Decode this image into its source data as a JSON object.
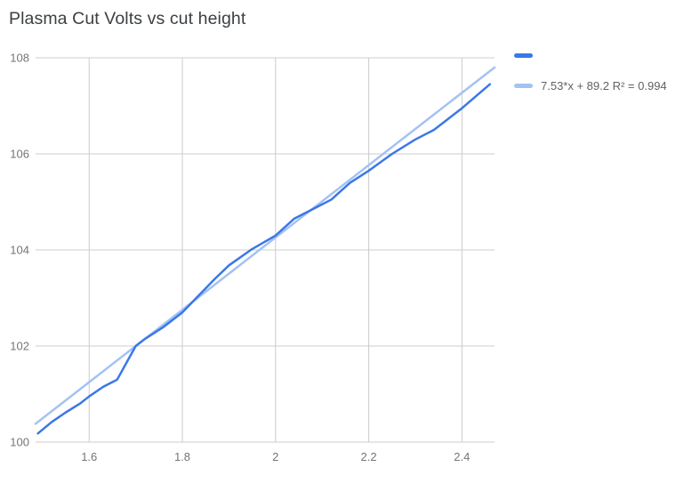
{
  "chart_data": {
    "type": "line",
    "title": "Plasma Cut Volts vs cut height",
    "xlabel": "",
    "ylabel": "",
    "x_range": [
      1.485,
      2.47
    ],
    "y_range": [
      100,
      108
    ],
    "grid": true,
    "legend_position": "right",
    "x_ticks": [
      {
        "v": 1.6,
        "label": "1.6"
      },
      {
        "v": 1.8,
        "label": "1.8"
      },
      {
        "v": 2.0,
        "label": "2"
      },
      {
        "v": 2.2,
        "label": "2.2"
      },
      {
        "v": 2.4,
        "label": "2.4"
      }
    ],
    "y_ticks": [
      {
        "v": 100,
        "label": "100"
      },
      {
        "v": 102,
        "label": "102"
      },
      {
        "v": 104,
        "label": "104"
      },
      {
        "v": 106,
        "label": "106"
      },
      {
        "v": 108,
        "label": "108"
      }
    ],
    "series": [
      {
        "color": "#3b77e8",
        "points": [
          [
            1.49,
            100.18
          ],
          [
            1.52,
            100.42
          ],
          [
            1.55,
            100.62
          ],
          [
            1.58,
            100.8
          ],
          [
            1.6,
            100.95
          ],
          [
            1.63,
            101.15
          ],
          [
            1.66,
            101.3
          ],
          [
            1.7,
            102.0
          ],
          [
            1.72,
            102.15
          ],
          [
            1.76,
            102.4
          ],
          [
            1.8,
            102.7
          ],
          [
            1.83,
            103.0
          ],
          [
            1.87,
            103.4
          ],
          [
            1.9,
            103.68
          ],
          [
            1.95,
            104.02
          ],
          [
            2.0,
            104.3
          ],
          [
            2.04,
            104.65
          ],
          [
            2.08,
            104.85
          ],
          [
            2.12,
            105.05
          ],
          [
            2.16,
            105.4
          ],
          [
            2.2,
            105.65
          ],
          [
            2.25,
            106.0
          ],
          [
            2.3,
            106.3
          ],
          [
            2.34,
            106.5
          ],
          [
            2.4,
            106.95
          ],
          [
            2.46,
            107.45
          ]
        ]
      }
    ],
    "trendline": {
      "slope": 7.53,
      "intercept": 89.2,
      "r2": 0.994,
      "label": "7.53*x + 89.2 R² = 0.994",
      "color": "#a4c2f4"
    },
    "colors": {
      "grid": "#cccccc",
      "axis_text": "#757575",
      "title_text": "#3c4043"
    }
  }
}
